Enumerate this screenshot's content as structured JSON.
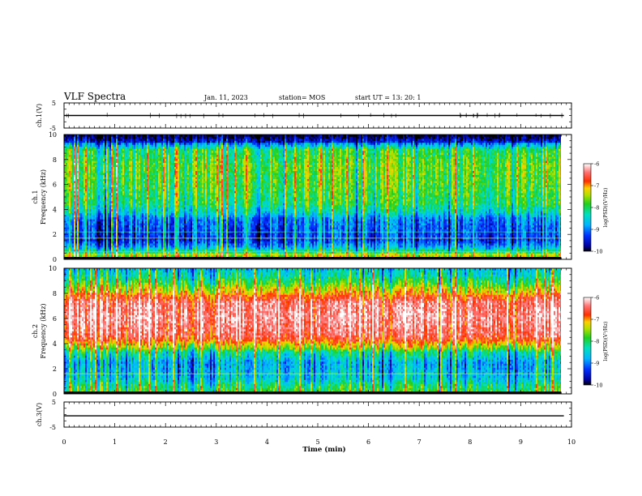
{
  "header": {
    "title": "VLF Spectra",
    "date": "Jan. 11, 2023",
    "station": "station= MOS",
    "start": "start  UT =   13: 20: 1"
  },
  "chart_data": [
    {
      "type": "line",
      "panel": "ch1-waveform",
      "ylabel": "ch.1(V)",
      "ylim": [
        -5,
        5
      ],
      "y_ticks": [
        "5",
        "-5"
      ],
      "xlim": [
        0,
        10
      ],
      "series": [
        {
          "x": [
            0,
            9.85
          ],
          "y": [
            0,
            0
          ]
        }
      ]
    },
    {
      "type": "heatmap",
      "panel": "ch1-spectrogram",
      "ylabel": "ch.1\nFrequency (kHz)",
      "ylim": [
        0,
        10
      ],
      "y_ticks": [
        "0",
        "2",
        "4",
        "6",
        "8",
        "10"
      ],
      "xlim": [
        0,
        9.85
      ],
      "zlim": [
        -10,
        -6
      ],
      "colorbar_label": "log(PSD)(V²/Hz)",
      "colorbar_ticks": [
        "-6",
        "-7",
        "-8",
        "-9",
        "-10"
      ],
      "profile_kHz": [
        [
          0,
          -7.5
        ],
        [
          0.4,
          -7.4
        ],
        [
          0.9,
          -8.6
        ],
        [
          1.5,
          -9.3
        ],
        [
          2.2,
          -9.2
        ],
        [
          3.2,
          -9.0
        ],
        [
          3.8,
          -8.4
        ],
        [
          4.5,
          -8.0
        ],
        [
          6.0,
          -7.8
        ],
        [
          7.5,
          -7.7
        ],
        [
          8.8,
          -8.0
        ],
        [
          9.3,
          -9.0
        ],
        [
          10,
          -9.6
        ]
      ],
      "horizontal_lines_kHz": [
        0.4,
        0.6,
        1.7,
        2.2
      ]
    },
    {
      "type": "heatmap",
      "panel": "ch2-spectrogram",
      "ylabel": "ch.2\nFrequency (kHz)",
      "ylim": [
        0,
        10
      ],
      "y_ticks": [
        "0",
        "2",
        "4",
        "6",
        "8",
        "10"
      ],
      "xlim": [
        0,
        9.85
      ],
      "zlim": [
        -10,
        -6
      ],
      "colorbar_label": "log(PSD)(V²/Hz)",
      "colorbar_ticks": [
        "-6",
        "-7",
        "-8",
        "-9",
        "-10"
      ],
      "profile_kHz": [
        [
          0,
          -7.8
        ],
        [
          0.5,
          -8.0
        ],
        [
          1.3,
          -8.6
        ],
        [
          2.5,
          -8.8
        ],
        [
          3.3,
          -8.2
        ],
        [
          3.9,
          -7.2
        ],
        [
          4.6,
          -6.5
        ],
        [
          6.0,
          -6.3
        ],
        [
          7.3,
          -6.4
        ],
        [
          8.1,
          -7.1
        ],
        [
          8.8,
          -7.8
        ],
        [
          9.4,
          -8.3
        ],
        [
          10,
          -8.6
        ]
      ],
      "horizontal_lines_kHz": [
        1.6
      ]
    },
    {
      "type": "line",
      "panel": "ch3-waveform",
      "ylabel": "ch.3(V)",
      "ylim": [
        -5,
        5
      ],
      "y_ticks": [
        "5",
        "-5"
      ],
      "xlim": [
        0,
        10
      ],
      "xlabel": "Time  (min)",
      "x_ticks": [
        "0",
        "1",
        "2",
        "3",
        "4",
        "5",
        "6",
        "7",
        "8",
        "9",
        "10"
      ],
      "series": [
        {
          "x": [
            0,
            9.85
          ],
          "y": [
            -0.5,
            -0.5
          ]
        }
      ]
    }
  ]
}
